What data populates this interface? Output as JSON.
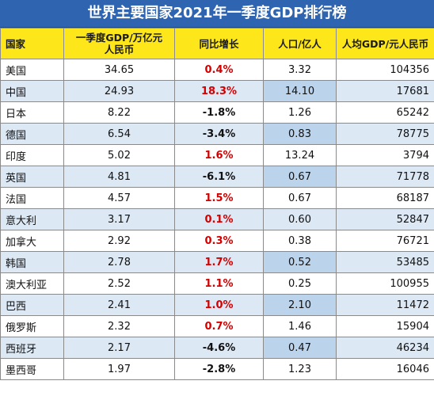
{
  "title": "世界主要国家2021年一季度GDP排行榜",
  "headers": {
    "country": "国家",
    "gdp_line1": "一季度GDP/万亿元",
    "gdp_line2": "人民币",
    "growth": "同比增长",
    "population": "人口/亿人",
    "per_capita": "人均GDP/元人民币"
  },
  "rows": [
    {
      "country": "美国",
      "gdp": "34.65",
      "growth": "0.4%",
      "population": "3.32",
      "per_capita": "104356"
    },
    {
      "country": "中国",
      "gdp": "24.93",
      "growth": "18.3%",
      "population": "14.10",
      "per_capita": "17681"
    },
    {
      "country": "日本",
      "gdp": "8.22",
      "growth": "-1.8%",
      "population": "1.26",
      "per_capita": "65242"
    },
    {
      "country": "德国",
      "gdp": "6.54",
      "growth": "-3.4%",
      "population": "0.83",
      "per_capita": "78775"
    },
    {
      "country": "印度",
      "gdp": "5.02",
      "growth": "1.6%",
      "population": "13.24",
      "per_capita": "3794"
    },
    {
      "country": "英国",
      "gdp": "4.81",
      "growth": "-6.1%",
      "population": "0.67",
      "per_capita": "71778"
    },
    {
      "country": "法国",
      "gdp": "4.57",
      "growth": "1.5%",
      "population": "0.67",
      "per_capita": "68187"
    },
    {
      "country": "意大利",
      "gdp": "3.17",
      "growth": "0.1%",
      "population": "0.60",
      "per_capita": "52847"
    },
    {
      "country": "加拿大",
      "gdp": "2.92",
      "growth": "0.3%",
      "population": "0.38",
      "per_capita": "76721"
    },
    {
      "country": "韩国",
      "gdp": "2.78",
      "growth": "1.7%",
      "population": "0.52",
      "per_capita": "53485"
    },
    {
      "country": "澳大利亚",
      "gdp": "2.52",
      "growth": "1.1%",
      "population": "0.25",
      "per_capita": "100955"
    },
    {
      "country": "巴西",
      "gdp": "2.41",
      "growth": "1.0%",
      "population": "2.10",
      "per_capita": "11472"
    },
    {
      "country": "俄罗斯",
      "gdp": "2.32",
      "growth": "0.7%",
      "population": "1.46",
      "per_capita": "15904"
    },
    {
      "country": "西班牙",
      "gdp": "2.17",
      "growth": "-4.6%",
      "population": "0.47",
      "per_capita": "46234"
    },
    {
      "country": "墨西哥",
      "gdp": "1.97",
      "growth": "-2.8%",
      "population": "1.23",
      "per_capita": "16046"
    }
  ],
  "colors": {
    "title_bg": "#2e64b0",
    "header_bg": "#fde619",
    "alt_row_bg": "#dde8f5",
    "highlight_bg": "#bcd3ec",
    "positive_growth": "#d40000"
  }
}
